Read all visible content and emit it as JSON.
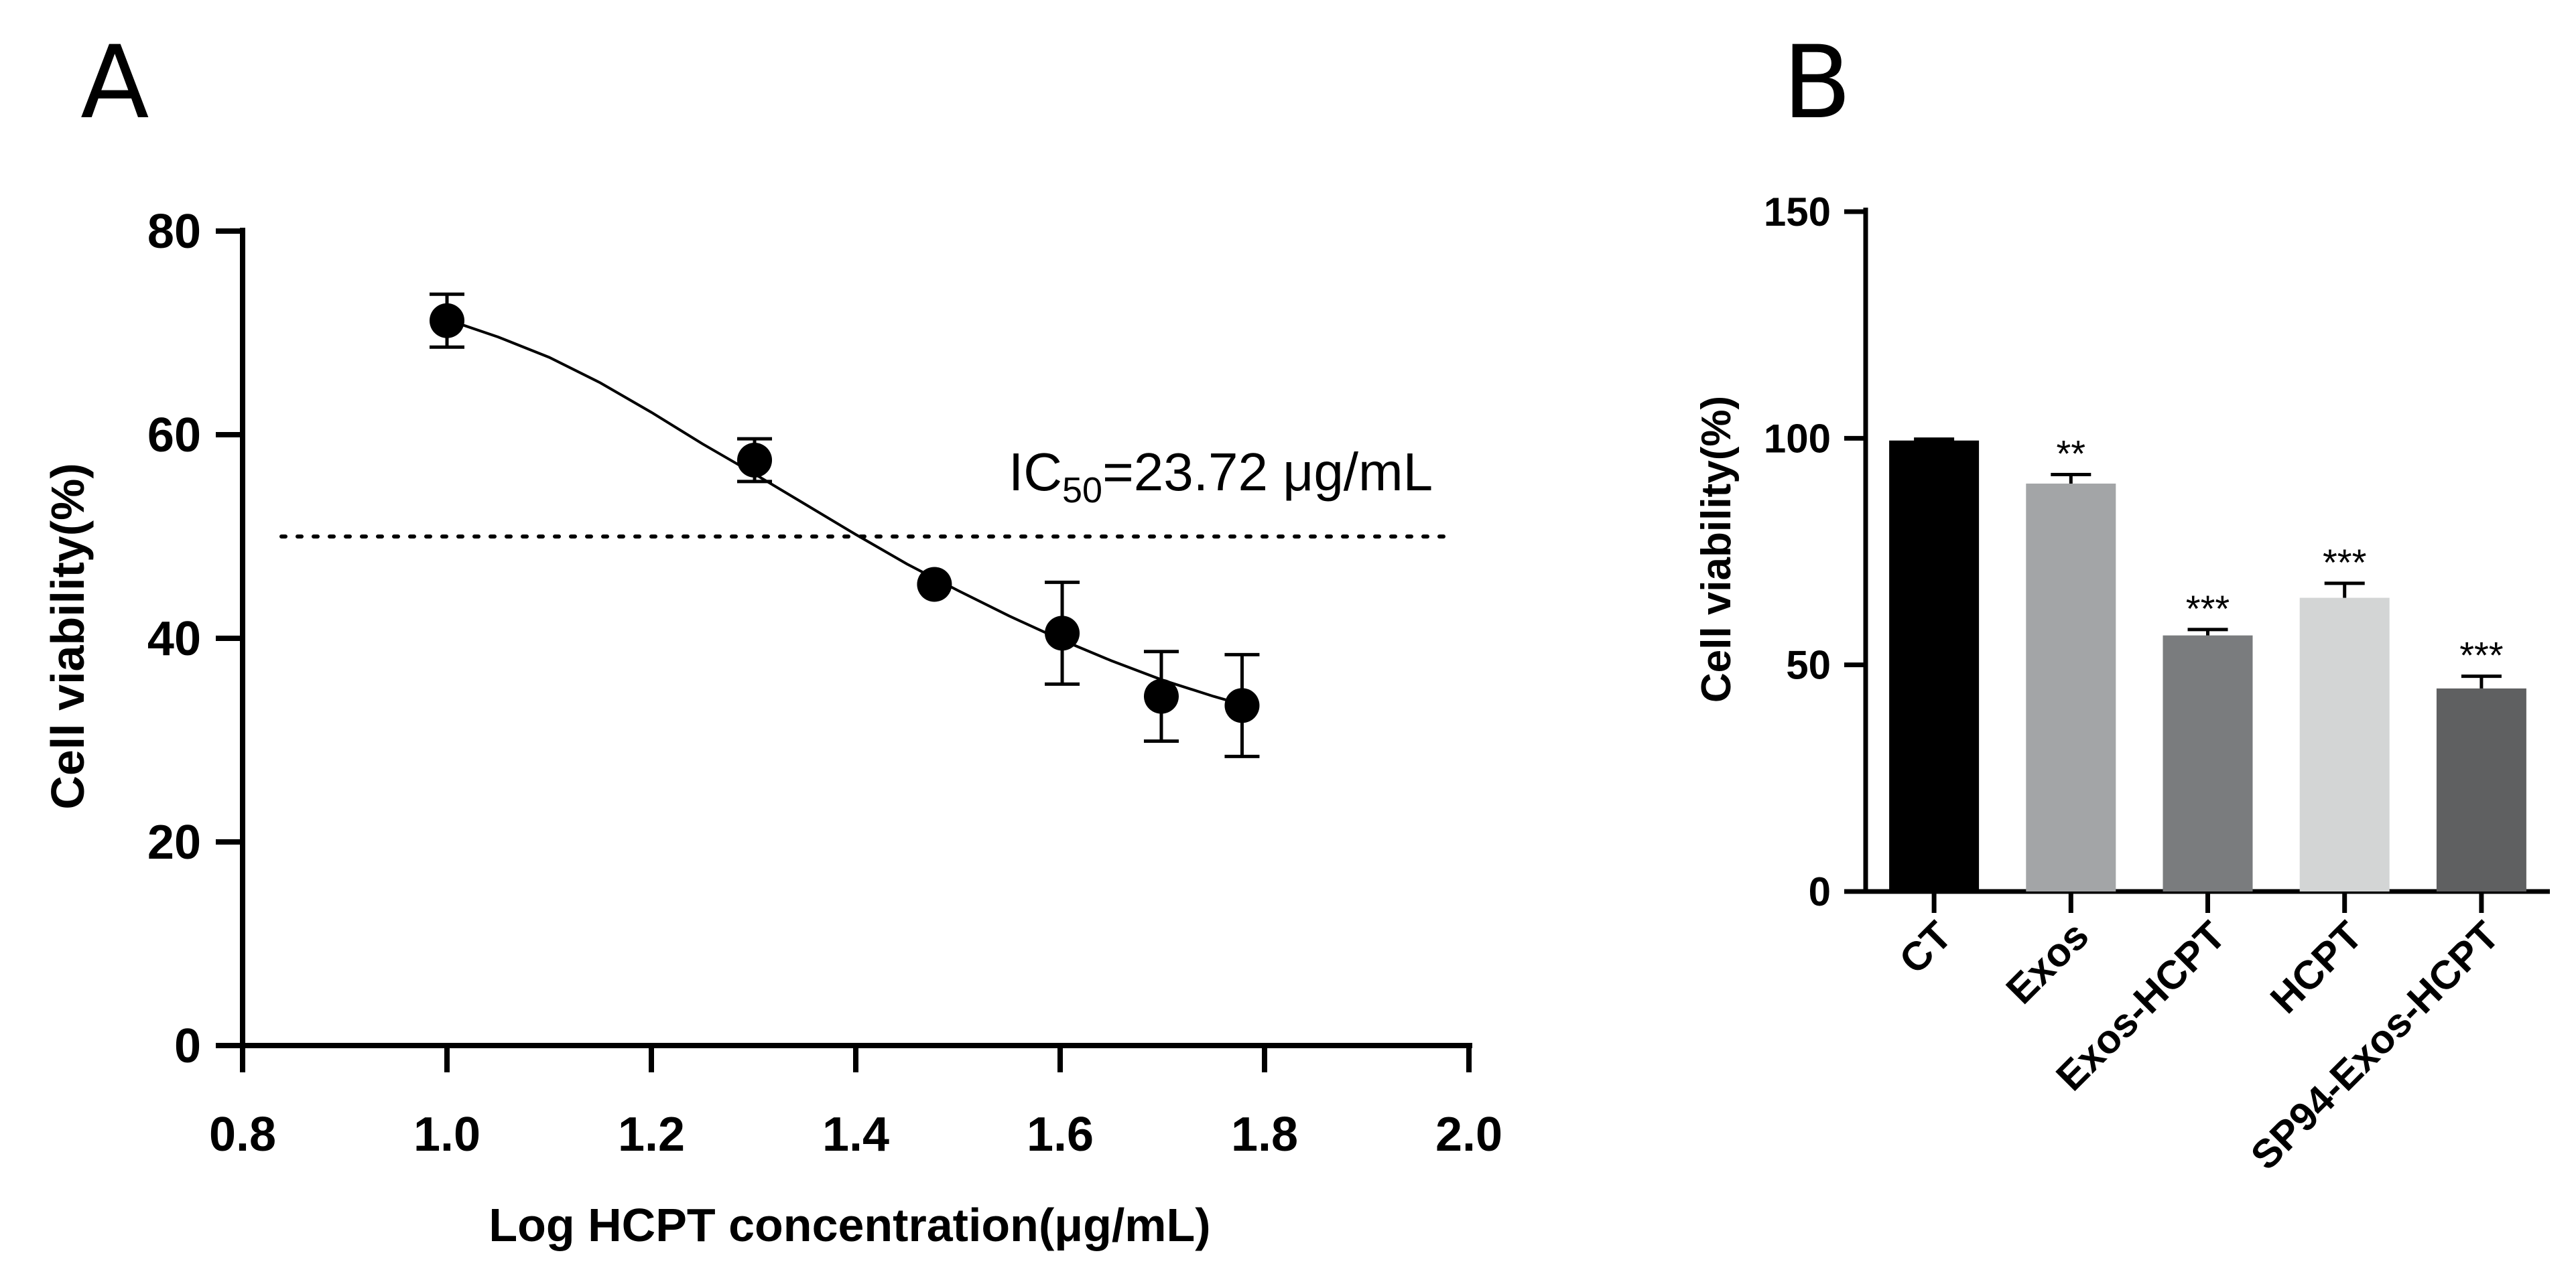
{
  "chart_data": [
    {
      "panel": "A",
      "type": "scatter",
      "xlabel": "Log HCPT concentration(μg/mL)",
      "ylabel": "Cell viability(%)",
      "xlim": [
        0.8,
        2.0
      ],
      "ylim": [
        0,
        80
      ],
      "x_ticks": [
        "0.8",
        "1.0",
        "1.2",
        "1.4",
        "1.6",
        "1.8",
        "2.0"
      ],
      "y_ticks": [
        "0",
        "20",
        "40",
        "60",
        "80"
      ],
      "points": [
        {
          "x": 1.0,
          "y": 71.2,
          "err": 2.6
        },
        {
          "x": 1.301,
          "y": 57.5,
          "err": 2.1
        },
        {
          "x": 1.477,
          "y": 45.3,
          "err": 0.6
        },
        {
          "x": 1.602,
          "y": 40.5,
          "err": 5.0
        },
        {
          "x": 1.699,
          "y": 34.3,
          "err": 4.4
        },
        {
          "x": 1.778,
          "y": 33.4,
          "err": 5.0
        }
      ],
      "fit_curve": {
        "x": [
          1.0,
          1.05,
          1.1,
          1.15,
          1.2,
          1.25,
          1.3,
          1.35,
          1.4,
          1.45,
          1.5,
          1.55,
          1.6,
          1.65,
          1.7,
          1.75,
          1.778
        ],
        "y": [
          71.3,
          69.6,
          67.6,
          65.1,
          62.2,
          59.1,
          56.2,
          53.2,
          50.2,
          47.3,
          44.7,
          42.2,
          39.9,
          37.8,
          35.9,
          34.3,
          33.5
        ]
      },
      "reference_line": {
        "y": 50,
        "style": "dotted"
      },
      "annotation": {
        "prefix": "IC",
        "subscript": "50",
        "suffix": "=23.72 μg/mL"
      }
    },
    {
      "panel": "B",
      "type": "bar",
      "ylabel": "Cell viability(%)",
      "ylim": [
        0,
        150
      ],
      "y_ticks": [
        "0",
        "50",
        "100",
        "150"
      ],
      "categories": [
        "CT",
        "Exos",
        "Exos-HCPT",
        "HCPT",
        "SP94-Exos-HCPT"
      ],
      "values": [
        99.5,
        90.0,
        56.5,
        64.8,
        44.8
      ],
      "errors": [
        0.3,
        2.0,
        1.3,
        3.2,
        2.7
      ],
      "significance": [
        "",
        "**",
        "***",
        "***",
        "***"
      ],
      "colors": [
        "#000000",
        "#a3a5a7",
        "#7a7c7e",
        "#d3d5d5",
        "#5f6061"
      ]
    }
  ],
  "panel_labels": {
    "a": "A",
    "b": "B"
  }
}
